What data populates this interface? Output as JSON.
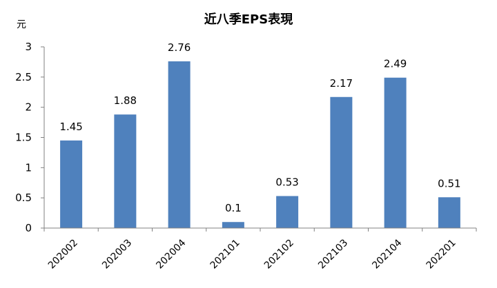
{
  "chart_data": {
    "type": "bar",
    "title": "近八季EPS表現",
    "ylabel": "元",
    "xlabel": "",
    "categories": [
      "202002",
      "202003",
      "202004",
      "202101",
      "202102",
      "202103",
      "202104",
      "202201"
    ],
    "values": [
      1.45,
      1.88,
      2.76,
      0.1,
      0.53,
      2.17,
      2.49,
      0.51
    ],
    "data_labels": [
      "1.45",
      "1.88",
      "2.76",
      "0.1",
      "0.53",
      "2.17",
      "2.49",
      "0.51"
    ],
    "ylim": [
      0,
      3
    ],
    "yticks": [
      "0",
      "0.5",
      "1",
      "1.5",
      "2",
      "2.5",
      "3"
    ],
    "grid": false,
    "legend": "none",
    "bar_color": "#4f81bd"
  }
}
